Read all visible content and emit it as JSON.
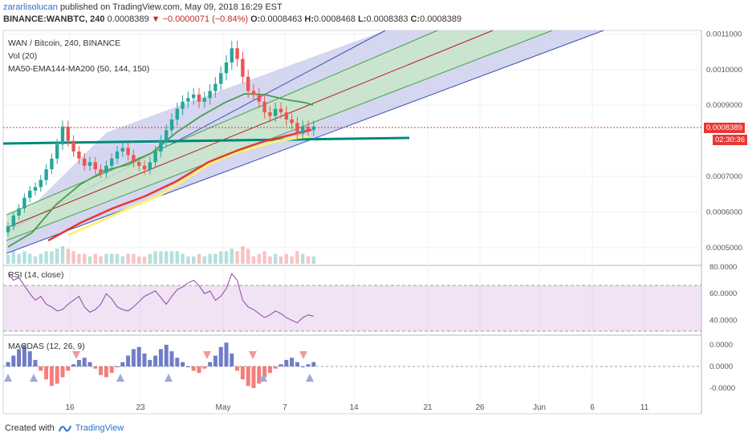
{
  "header": {
    "author": "zararlisolucan",
    "published": "published on TradingView.com, May 09, 2018 16:29 EST",
    "symbol": "BINANCE:WANBTC, 240",
    "last": "0.0008389",
    "change": "−0.0000071 (−0.84%)",
    "o_label": "O:",
    "o": "0.0008463",
    "h_label": "H:",
    "h": "0.0008468",
    "l_label": "L:",
    "l": "0.0008383",
    "c_label": "C:",
    "c": "0.0008389"
  },
  "legend": {
    "title": "WAN / Bitcoin, 240, BINANCE",
    "vol": "Vol (20)",
    "ma": "MA50-EMA144-MA200 (50, 144, 150)",
    "rsi": "RSI (14, close)",
    "macd": "MACDAS (12, 26, 9)"
  },
  "tags": {
    "price": "0.0008389",
    "timer": "02:30:36"
  },
  "footer": {
    "created": "Created with",
    "brand": "TradingView"
  },
  "colors": {
    "bull": "#26a69a",
    "bear": "#ef5350",
    "channel_fill": "#c5cae9",
    "inner_fill": "#c8e6c9",
    "rsi": "#8e44ad",
    "ma_green": "#43a047",
    "ma_red": "#e53935",
    "ma_yellow": "#fff176",
    "support": "#00897b"
  },
  "chart_data": {
    "type": "line",
    "x_ticks": [
      "16",
      "23",
      "May",
      "7",
      "14",
      "21",
      "26",
      "Jun",
      "6",
      "11"
    ],
    "price_axis": {
      "ylim": [
        0.00045,
        0.00111
      ],
      "ticks": [
        "0.0011000",
        "0.0010000",
        "0.0009000",
        "0.0007000",
        "0.0006000",
        "0.0005000"
      ],
      "last_price": 0.0008389,
      "support_level": 0.00079
    },
    "close_series": [
      0.00056,
      0.00059,
      0.00061,
      0.00064,
      0.00066,
      0.00067,
      0.00069,
      0.00072,
      0.00075,
      0.00079,
      0.00084,
      0.0008,
      0.00077,
      0.00075,
      0.00073,
      0.00074,
      0.00072,
      0.00071,
      0.00073,
      0.00075,
      0.00077,
      0.00078,
      0.00076,
      0.00074,
      0.00073,
      0.00072,
      0.00074,
      0.00077,
      0.0008,
      0.00083,
      0.00086,
      0.00089,
      0.00091,
      0.00092,
      0.00093,
      0.00091,
      0.00092,
      0.00094,
      0.00096,
      0.00099,
      0.00102,
      0.00106,
      0.00103,
      0.00098,
      0.00094,
      0.00093,
      0.00091,
      0.00088,
      0.00087,
      0.00089,
      0.00088,
      0.00086,
      0.00085,
      0.00082,
      0.00084,
      0.00083,
      0.00084
    ],
    "rsi": {
      "ylim": [
        30,
        80
      ],
      "ticks": [
        "80.0000",
        "60.0000",
        "40.0000"
      ],
      "values": [
        75,
        70,
        72,
        66,
        60,
        55,
        58,
        52,
        50,
        47,
        48,
        52,
        55,
        58,
        50,
        46,
        48,
        52,
        60,
        56,
        50,
        48,
        47,
        50,
        54,
        58,
        60,
        62,
        57,
        52,
        58,
        63,
        65,
        68,
        70,
        66,
        60,
        62,
        55,
        58,
        64,
        75,
        70,
        55,
        50,
        48,
        45,
        42,
        44,
        47,
        45,
        42,
        40,
        38,
        42,
        44,
        43
      ]
    },
    "macd": {
      "ticks": [
        "0.0000",
        "0.0000",
        "-0.0000"
      ],
      "hist": [
        2,
        5,
        8,
        10,
        7,
        3,
        -2,
        -6,
        -9,
        -8,
        -5,
        -2,
        1,
        3,
        4,
        2,
        -1,
        -4,
        -5,
        -3,
        0,
        2,
        5,
        8,
        9,
        6,
        3,
        5,
        8,
        10,
        7,
        4,
        2,
        0,
        -2,
        -3,
        -1,
        2,
        5,
        9,
        11,
        6,
        -2,
        -6,
        -9,
        -10,
        -8,
        -5,
        -3,
        -1,
        1,
        3,
        4,
        2,
        0,
        1,
        2
      ]
    }
  }
}
